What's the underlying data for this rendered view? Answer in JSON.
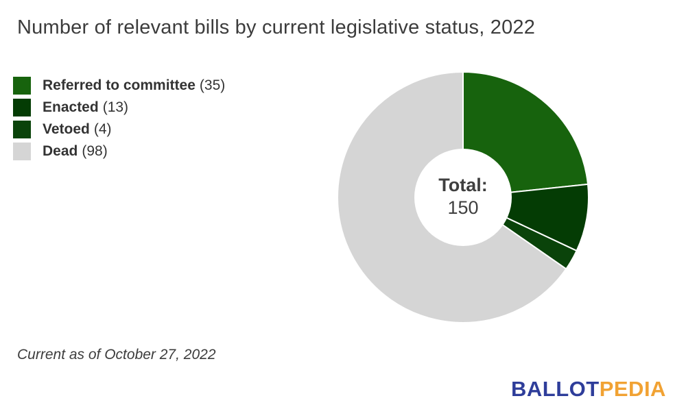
{
  "title": "Number of relevant bills by current legislative status, 2022",
  "legend": {
    "items": [
      {
        "label": "Referred to committee",
        "count": "(35)",
        "color": "#17630d"
      },
      {
        "label": "Enacted",
        "count": "(13)",
        "color": "#043c04"
      },
      {
        "label": "Vetoed",
        "count": "(4)",
        "color": "#0a430a"
      },
      {
        "label": "Dead",
        "count": "(98)",
        "color": "#d5d5d5"
      }
    ]
  },
  "chart_data": {
    "type": "pie",
    "subtype": "donut",
    "title": "Number of relevant bills by current legislative status, 2022",
    "categories": [
      "Referred to committee",
      "Enacted",
      "Vetoed",
      "Dead"
    ],
    "values": [
      35,
      13,
      4,
      98
    ],
    "colors": [
      "#17630d",
      "#043c04",
      "#0a430a",
      "#d5d5d5"
    ],
    "total": 150,
    "center_label": "Total:",
    "center_value": "150",
    "start_angle_deg": 0,
    "direction": "clockwise",
    "donut_hole_ratio": 0.39,
    "slice_border_color": "#ffffff",
    "legend_position": "left"
  },
  "footnote": "Current as of October 27, 2022",
  "logo": {
    "ballot": "BALLOT",
    "pedia": "PEDIA",
    "ballot_color": "#2e3d9a",
    "pedia_color": "#f1a233"
  }
}
